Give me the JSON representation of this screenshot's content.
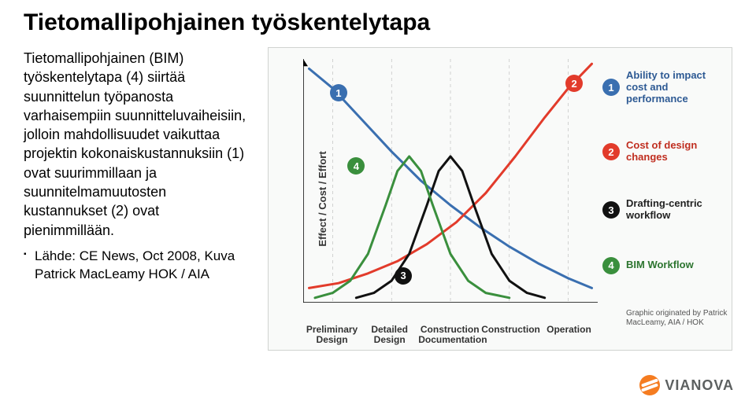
{
  "title": "Tietomallipohjainen työskentelytapa",
  "paragraph": "Tietomallipohjainen (BIM) työskentelytapa (4) siirtää suunnittelun työpanosta varhaisempiin suunnitteluvaiheisiin, jolloin mahdollisuudet vaikuttaa projektin kokonaiskustannuksiin (1) ovat suurimmillaan ja suunnitelmamuutosten kustannukset (2) ovat pienimmillään.",
  "source_text": "Lähde: CE News, Oct 2008, Kuva Patrick MacLeamy HOK / AIA",
  "logo_text": "VIANOVA",
  "logo_color": "#f57c20",
  "chart": {
    "type": "line",
    "background_color": "#f9faf9",
    "border_color": "#d0d3d0",
    "y_axis_label": "Effect / Cost / Effort",
    "y_axis_color": "#333333",
    "label_fontsize": 13,
    "tick_fontsize": 12,
    "x_ticks": [
      "Preliminary Design",
      "Detailed Design",
      "Construction Documentation",
      "Construction",
      "Operation"
    ],
    "grid_dashed": true,
    "grid_color": "#888888",
    "grid_dash": "4 4",
    "axis_color": "#000000",
    "xlim": [
      0,
      100
    ],
    "ylim": [
      0,
      100
    ],
    "line_width": 3,
    "curves": [
      {
        "id": 1,
        "color": "#3a6fb0",
        "points": [
          [
            2,
            96
          ],
          [
            10,
            88
          ],
          [
            20,
            75
          ],
          [
            30,
            62
          ],
          [
            40,
            50
          ],
          [
            50,
            40
          ],
          [
            60,
            31
          ],
          [
            70,
            23
          ],
          [
            80,
            16
          ],
          [
            90,
            10
          ],
          [
            98,
            6
          ]
        ],
        "badge_xy": [
          12,
          86
        ]
      },
      {
        "id": 2,
        "color": "#e23b2b",
        "points": [
          [
            2,
            6
          ],
          [
            12,
            8
          ],
          [
            22,
            12
          ],
          [
            32,
            17
          ],
          [
            42,
            24
          ],
          [
            52,
            33
          ],
          [
            62,
            45
          ],
          [
            72,
            60
          ],
          [
            82,
            76
          ],
          [
            90,
            88
          ],
          [
            98,
            98
          ]
        ],
        "badge_xy": [
          92,
          90
        ]
      },
      {
        "id": 3,
        "color": "#111111",
        "points": [
          [
            18,
            2
          ],
          [
            24,
            4
          ],
          [
            30,
            9
          ],
          [
            36,
            20
          ],
          [
            42,
            40
          ],
          [
            46,
            54
          ],
          [
            50,
            60
          ],
          [
            54,
            54
          ],
          [
            58,
            40
          ],
          [
            64,
            20
          ],
          [
            70,
            9
          ],
          [
            76,
            4
          ],
          [
            82,
            2
          ]
        ],
        "badge_xy": [
          34,
          11
        ]
      },
      {
        "id": 4,
        "color": "#3a8f3d",
        "points": [
          [
            4,
            2
          ],
          [
            10,
            4
          ],
          [
            16,
            9
          ],
          [
            22,
            20
          ],
          [
            28,
            40
          ],
          [
            32,
            54
          ],
          [
            36,
            60
          ],
          [
            40,
            54
          ],
          [
            44,
            40
          ],
          [
            50,
            20
          ],
          [
            56,
            9
          ],
          [
            62,
            4
          ],
          [
            70,
            2
          ]
        ],
        "badge_xy": [
          18,
          56
        ]
      }
    ]
  },
  "legend": {
    "items": [
      {
        "id": 1,
        "color": "#3a6fb0",
        "text_color": "#2e5a94",
        "label": "Ability to impact cost and performance"
      },
      {
        "id": 2,
        "color": "#e23b2b",
        "text_color": "#c02e20",
        "label": "Cost of design changes"
      },
      {
        "id": 3,
        "color": "#111111",
        "text_color": "#222222",
        "label": "Drafting-centric workflow"
      },
      {
        "id": 4,
        "color": "#3a8f3d",
        "text_color": "#2d7530",
        "label": "BIM Workflow"
      }
    ],
    "attribution": "Graphic originated by Patrick MacLeamy, AIA / HOK"
  }
}
